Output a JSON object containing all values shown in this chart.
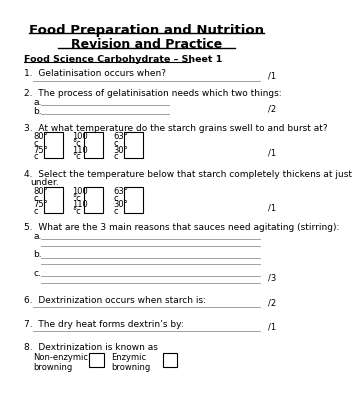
{
  "title1": "Food Preparation and Nutrition",
  "title2": "Revision and Practice",
  "subtitle": "Food Science Carbohydrate – Sheet 1",
  "bg_color": "#ffffff",
  "text_color": "#000000",
  "q1": "1.  Gelatinisation occurs when?",
  "q2": "2.  The process of gelatinisation needs which two things:",
  "q3": "3.  At what temperature do the starch grains swell to and burst at?",
  "q4a": "4.  Select the temperature below that starch completely thickens at just",
  "q4b": "    under.",
  "q5": "5.  What are the 3 main reasons that sauces need agitating (stirring):",
  "q6": "6.  Dextrinization occurs when starch is:",
  "q7": "7.  The dry heat forms dextrin’s by:",
  "q8": "8.  Dextrinization is known as",
  "temp_col1": [
    "80°",
    "c",
    "75°",
    "c"
  ],
  "temp_col2": [
    "100",
    "°c",
    "110",
    "°c"
  ],
  "temp_col3": [
    "63°",
    "c",
    "30°",
    "c"
  ],
  "browning1": "Non-enzymic\nbrowning",
  "browning2": "Enzymic\nbrowning",
  "mark1": "/1",
  "mark2": "/2",
  "mark3": "/1",
  "mark4": "/1",
  "mark5": "/3",
  "mark6": "/2",
  "mark7": "/1"
}
